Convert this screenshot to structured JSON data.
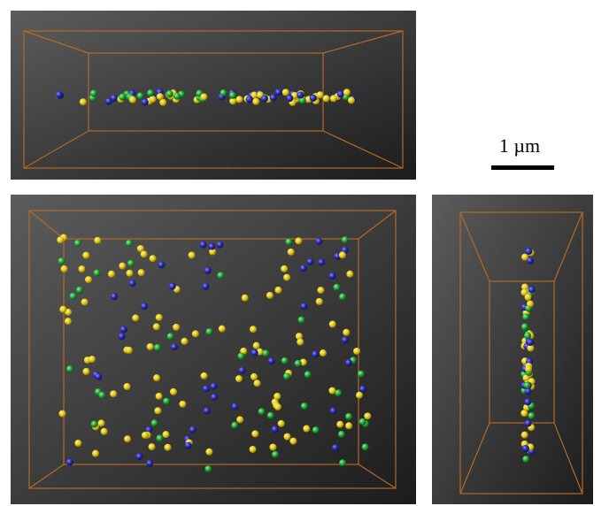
{
  "scale_bar": {
    "label": "1 µm"
  }
}
